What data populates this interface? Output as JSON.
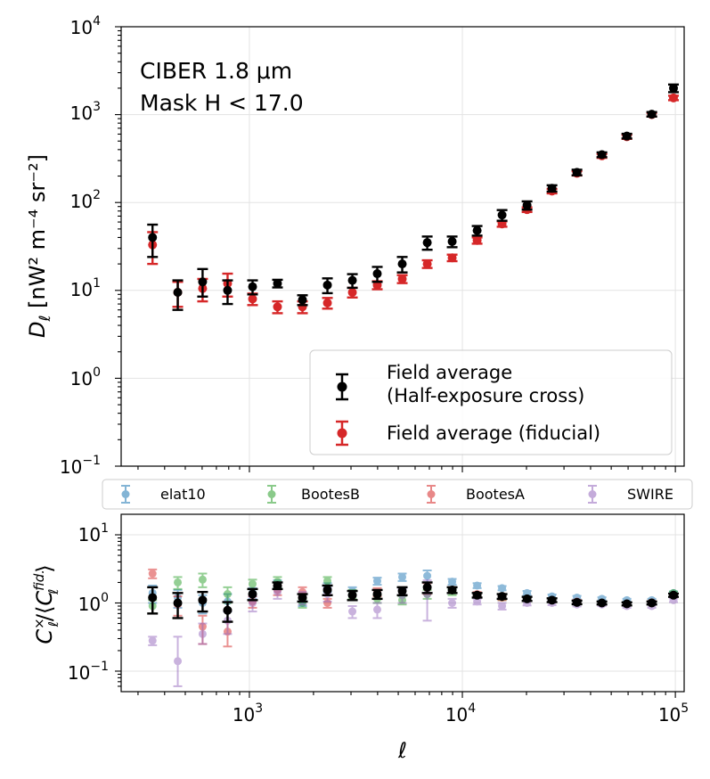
{
  "chart_data": [
    {
      "type": "scatter",
      "panel": "top",
      "xscale": "log",
      "yscale": "log",
      "xlim": [
        250,
        110000
      ],
      "ylim": [
        0.1,
        10000
      ],
      "ylabel_main": "D",
      "ylabel_sub": "ℓ",
      "ylabel_units": " [nW² m⁻⁴ sr⁻²]",
      "ytick_values": [
        0.1,
        1,
        10,
        100,
        1000,
        10000
      ],
      "ytick_mantissa": [
        "10",
        "10",
        "10",
        "10",
        "10",
        "10"
      ],
      "ytick_exponents": [
        "−1",
        "0",
        "1",
        "2",
        "3",
        "4"
      ],
      "annotation": [
        "CIBER 1.8 μm",
        "Mask H < 17.0"
      ],
      "legend": [
        "Field average",
        "(Half-exposure cross)",
        "Field average (fiducial)"
      ],
      "series": [
        {
          "name": "Field average (Half-exposure cross)",
          "color": "#000000",
          "x": [
            351,
            461,
            603,
            790,
            1035,
            1355,
            1775,
            2325,
            3045,
            3985,
            5220,
            6840,
            8955,
            11730,
            15360,
            20120,
            26350,
            34510,
            45200,
            59200,
            77500,
            98000
          ],
          "y": [
            40,
            9.5,
            12.5,
            10,
            11,
            12,
            7.8,
            11.5,
            13,
            15.5,
            20,
            35,
            36,
            48,
            72,
            93,
            145,
            220,
            350,
            570,
            1010,
            2000
          ],
          "err_lo": [
            16,
            3.5,
            4,
            3,
            2,
            1.2,
            1,
            2.2,
            2.3,
            3,
            4,
            6,
            5,
            6,
            10,
            10,
            12,
            16,
            22,
            35,
            60,
            200
          ],
          "err_hi": [
            16,
            3.5,
            5,
            3,
            2,
            1.2,
            1,
            2.2,
            2.3,
            3,
            4,
            6,
            5,
            6,
            10,
            10,
            12,
            16,
            22,
            35,
            60,
            200
          ]
        },
        {
          "name": "Field average (fiducial)",
          "color": "#d62728",
          "x": [
            351,
            461,
            603,
            790,
            1035,
            1355,
            1775,
            2325,
            3045,
            3985,
            5220,
            6840,
            8955,
            11730,
            15360,
            20120,
            26350,
            34510,
            45200,
            59200,
            77500,
            98000
          ],
          "y": [
            33,
            9.5,
            10.5,
            12,
            8,
            6.5,
            6.5,
            7.2,
            9.5,
            11.5,
            13.5,
            20,
            23.5,
            37,
            57,
            83,
            135,
            215,
            340,
            560,
            1000,
            1550
          ],
          "err_lo": [
            13,
            3,
            3,
            3.5,
            1.2,
            1,
            1,
            1,
            1.2,
            1.2,
            1.4,
            2,
            2,
            3,
            4,
            5,
            8,
            12,
            18,
            30,
            50,
            90
          ],
          "err_hi": [
            13,
            3,
            3,
            3.5,
            1.2,
            1,
            1,
            1,
            1.2,
            1.2,
            1.4,
            2,
            2,
            3,
            4,
            5,
            8,
            12,
            18,
            30,
            50,
            90
          ]
        }
      ]
    },
    {
      "type": "scatter",
      "panel": "bottom",
      "xscale": "log",
      "yscale": "log",
      "xlim": [
        250,
        110000
      ],
      "ylim": [
        0.05,
        20
      ],
      "xlabel": "ℓ",
      "ylabel": "C×ℓ/⟨Cfid.ℓ⟩",
      "ylabel_main_1": "C",
      "ylabel_sup_1": "×",
      "ylabel_sub_1": "ℓ",
      "ylabel_mid": "/⟨",
      "ylabel_main_2": "C",
      "ylabel_sup_2": "fid.",
      "ylabel_sub_2": "ℓ",
      "ylabel_end": "⟩",
      "xtick_values": [
        1000,
        10000,
        100000
      ],
      "xtick_mantissa": [
        "10",
        "10",
        "10"
      ],
      "xtick_exponents": [
        "3",
        "4",
        "5"
      ],
      "ytick_values": [
        0.1,
        1,
        10
      ],
      "ytick_mantissa": [
        "10",
        "10",
        "10"
      ],
      "ytick_exponents": [
        "−1",
        "0",
        "1"
      ],
      "legend": [
        "elat10",
        "BootesB",
        "BootesA",
        "SWIRE"
      ],
      "series": [
        {
          "name": "elat10",
          "color": "#1f77b4",
          "x": [
            351,
            461,
            603,
            790,
            1035,
            1355,
            1775,
            2325,
            3045,
            3985,
            5220,
            6840,
            8955,
            11730,
            15360,
            20120,
            26350,
            34510,
            45200,
            59200,
            77500,
            98000
          ],
          "y": [
            1.4,
            1.2,
            1.0,
            1.05,
            1.4,
            1.9,
            1.05,
            1.7,
            1.5,
            2.1,
            2.4,
            2.5,
            2.05,
            1.8,
            1.65,
            1.4,
            1.25,
            1.2,
            1.15,
            1.1,
            1.1,
            1.4
          ],
          "err_lo": [
            0.4,
            0.35,
            0.3,
            0.3,
            0.25,
            0.25,
            0.15,
            0.25,
            0.2,
            0.25,
            0.3,
            0.5,
            0.2,
            0.15,
            0.12,
            0.1,
            0.08,
            0.07,
            0.06,
            0.05,
            0.05,
            0.07
          ],
          "err_hi": [
            0.4,
            0.35,
            0.3,
            0.3,
            0.25,
            0.25,
            0.15,
            0.25,
            0.2,
            0.25,
            0.3,
            0.5,
            0.2,
            0.15,
            0.12,
            0.1,
            0.08,
            0.07,
            0.06,
            0.05,
            0.05,
            0.07
          ]
        },
        {
          "name": "BootesB",
          "color": "#2ca02c",
          "x": [
            351,
            461,
            603,
            790,
            1035,
            1355,
            1775,
            2325,
            3045,
            3985,
            5220,
            6840,
            8955,
            11730,
            15360,
            20120,
            26350,
            34510,
            45200,
            59200,
            77500,
            98000
          ],
          "y": [
            0.9,
            2.0,
            2.2,
            1.35,
            1.9,
            2.05,
            1.0,
            2.1,
            1.35,
            1.15,
            1.1,
            1.35,
            1.45,
            1.3,
            1.2,
            1.15,
            1.1,
            1.0,
            1.0,
            0.97,
            1.0,
            1.4
          ],
          "err_lo": [
            0.2,
            0.4,
            0.5,
            0.35,
            0.3,
            0.35,
            0.15,
            0.3,
            0.2,
            0.15,
            0.15,
            0.2,
            0.15,
            0.1,
            0.1,
            0.08,
            0.07,
            0.06,
            0.05,
            0.05,
            0.05,
            0.07
          ],
          "err_hi": [
            0.2,
            0.4,
            0.5,
            0.35,
            0.3,
            0.35,
            0.15,
            0.3,
            0.2,
            0.15,
            0.15,
            0.2,
            0.15,
            0.1,
            0.1,
            0.08,
            0.07,
            0.06,
            0.05,
            0.05,
            0.05,
            0.07
          ]
        },
        {
          "name": "BootesA",
          "color": "#d62728",
          "x": [
            351,
            461,
            603,
            790,
            1035,
            1355,
            1775,
            2325,
            3045,
            3985,
            5220,
            6840,
            8955,
            11730,
            15360,
            20120,
            26350,
            34510,
            45200,
            59200,
            77500,
            98000
          ],
          "y": [
            2.7,
            0.95,
            0.45,
            0.38,
            1.05,
            1.55,
            1.45,
            1.0,
            1.3,
            1.45,
            1.5,
            1.65,
            1.55,
            1.35,
            1.2,
            1.15,
            1.1,
            1.05,
            1.0,
            0.98,
            1.02,
            1.3
          ],
          "err_lo": [
            0.4,
            0.3,
            0.2,
            0.15,
            0.2,
            0.25,
            0.25,
            0.15,
            0.2,
            0.2,
            0.2,
            0.3,
            0.15,
            0.1,
            0.1,
            0.08,
            0.07,
            0.06,
            0.05,
            0.05,
            0.05,
            0.07
          ],
          "err_hi": [
            0.4,
            0.3,
            0.2,
            0.15,
            0.2,
            0.25,
            0.25,
            0.15,
            0.2,
            0.2,
            0.2,
            0.3,
            0.15,
            0.1,
            0.1,
            0.08,
            0.07,
            0.06,
            0.05,
            0.05,
            0.05,
            0.07
          ]
        },
        {
          "name": "SWIRE",
          "color": "#9467bd",
          "x": [
            351,
            461,
            603,
            790,
            1035,
            1355,
            1775,
            2325,
            3045,
            3985,
            5220,
            6840,
            8955,
            11730,
            15360,
            20120,
            26350,
            34510,
            45200,
            59200,
            77500,
            98000
          ],
          "y": [
            0.28,
            0.14,
            0.35,
            0.55,
            1.0,
            1.45,
            1.2,
            1.35,
            0.75,
            0.8,
            1.3,
            1.35,
            1.0,
            1.05,
            0.9,
            1.0,
            1.0,
            0.95,
            0.95,
            0.9,
            0.9,
            1.1
          ],
          "err_lo": [
            0.04,
            0.08,
            0.1,
            0.2,
            0.25,
            0.3,
            0.25,
            0.3,
            0.15,
            0.2,
            0.3,
            0.8,
            0.15,
            0.1,
            0.1,
            0.08,
            0.07,
            0.06,
            0.05,
            0.05,
            0.05,
            0.07
          ],
          "err_hi": [
            0.04,
            0.18,
            0.15,
            0.2,
            0.25,
            0.3,
            0.25,
            0.3,
            0.15,
            0.2,
            0.3,
            0.8,
            0.15,
            0.1,
            0.1,
            0.08,
            0.07,
            0.06,
            0.05,
            0.05,
            0.05,
            0.07
          ]
        },
        {
          "name": "Field average (Half-exposure cross)",
          "color": "#000000",
          "x": [
            351,
            461,
            603,
            790,
            1035,
            1355,
            1775,
            2325,
            3045,
            3985,
            5220,
            6840,
            8955,
            11730,
            15360,
            20120,
            26350,
            34510,
            45200,
            59200,
            77500,
            98000
          ],
          "y": [
            1.2,
            1.0,
            1.1,
            0.78,
            1.35,
            1.8,
            1.2,
            1.55,
            1.3,
            1.35,
            1.5,
            1.7,
            1.55,
            1.3,
            1.25,
            1.15,
            1.1,
            1.02,
            1.0,
            0.97,
            1.0,
            1.3
          ],
          "err_lo": [
            0.5,
            0.4,
            0.35,
            0.25,
            0.25,
            0.2,
            0.15,
            0.25,
            0.2,
            0.2,
            0.2,
            0.3,
            0.15,
            0.1,
            0.1,
            0.08,
            0.07,
            0.06,
            0.05,
            0.05,
            0.05,
            0.07
          ],
          "err_hi": [
            0.5,
            0.4,
            0.35,
            0.25,
            0.25,
            0.2,
            0.15,
            0.25,
            0.2,
            0.2,
            0.2,
            0.3,
            0.15,
            0.1,
            0.1,
            0.08,
            0.07,
            0.06,
            0.05,
            0.05,
            0.05,
            0.07
          ]
        }
      ]
    }
  ]
}
